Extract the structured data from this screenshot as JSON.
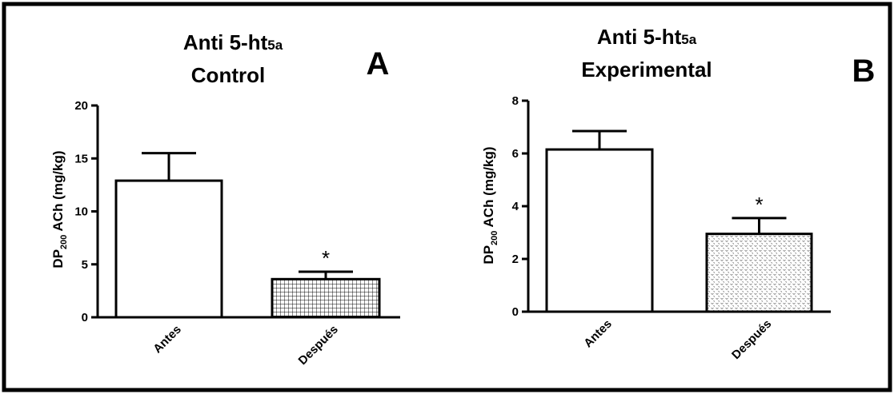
{
  "chart_data": [
    {
      "type": "bar",
      "panel_label": "A",
      "title_line1": "Anti 5-ht",
      "title_sub": "5a",
      "title_line2": "Control",
      "ylabel_main": "DP",
      "ylabel_sub": "200",
      "ylabel_rest": " ACh (mg/kg)",
      "ylim": [
        0,
        20
      ],
      "yticks": [
        "0",
        "5",
        "10",
        "15",
        "20"
      ],
      "ytick_values": [
        0,
        5,
        10,
        15,
        20
      ],
      "categories": [
        "Antes",
        "Después"
      ],
      "values": [
        12.9,
        3.6
      ],
      "errors": [
        2.6,
        0.7
      ],
      "fills": [
        "white",
        "grid"
      ],
      "significance": [
        "",
        "*"
      ]
    },
    {
      "type": "bar",
      "panel_label": "B",
      "title_line1": "Anti 5-ht",
      "title_sub": "5a",
      "title_line2": "Experimental",
      "ylabel_main": "DP",
      "ylabel_sub": "200",
      "ylabel_rest": " ACh (mg/kg)",
      "ylim": [
        0,
        8
      ],
      "yticks": [
        "0",
        "2",
        "4",
        "6",
        "8"
      ],
      "ytick_values": [
        0,
        2,
        4,
        6,
        8
      ],
      "categories": [
        "Antes",
        "Después"
      ],
      "values": [
        6.15,
        2.95
      ],
      "errors": [
        0.7,
        0.6
      ],
      "fills": [
        "white",
        "dots"
      ],
      "significance": [
        "",
        "*"
      ]
    }
  ]
}
